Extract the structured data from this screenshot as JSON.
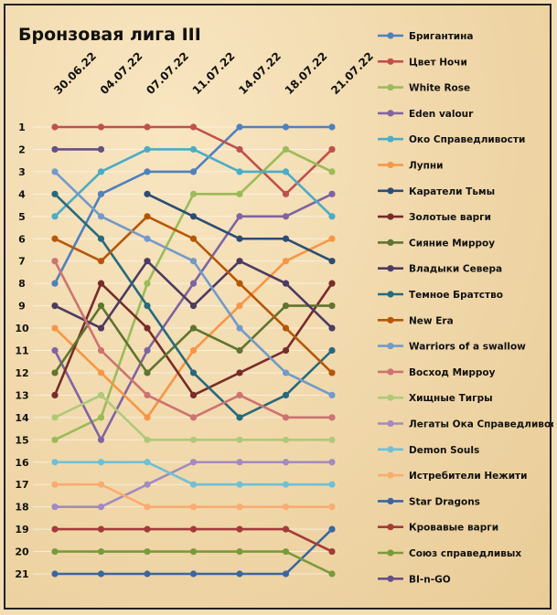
{
  "chart_data": {
    "type": "line",
    "title": "Бронзовая лига III",
    "xlabel": "",
    "ylabel": "",
    "x": [
      "30.06.22",
      "04.07.22",
      "07.07.22",
      "11.07.22",
      "14.07.22",
      "18.07.22",
      "21.07.22"
    ],
    "ylim": [
      1,
      21
    ],
    "y_ticks": [
      "1",
      "2",
      "3",
      "4",
      "5",
      "6",
      "7",
      "8",
      "9",
      "10",
      "11",
      "12",
      "13",
      "14",
      "15",
      "16",
      "17",
      "18",
      "19",
      "20",
      "21"
    ],
    "y_inverted": true,
    "grid": true,
    "legend_position": "right",
    "series": [
      {
        "name": "Бригантина",
        "color": "#4f81bd",
        "values": [
          8,
          4,
          3,
          3,
          1,
          1,
          1
        ]
      },
      {
        "name": "Цвет Ночи",
        "color": "#c0504d",
        "values": [
          1,
          1,
          1,
          1,
          2,
          4,
          2
        ]
      },
      {
        "name": "White Rose",
        "color": "#9bbb59",
        "values": [
          15,
          14,
          8,
          4,
          4,
          2,
          3
        ]
      },
      {
        "name": "Eden valour",
        "color": "#8064a2",
        "values": [
          11,
          15,
          11,
          8,
          5,
          5,
          4
        ]
      },
      {
        "name": "Око Справедливости",
        "color": "#4bacc6",
        "values": [
          5,
          3,
          2,
          2,
          3,
          3,
          5
        ]
      },
      {
        "name": "Лупни",
        "color": "#f79646",
        "values": [
          10,
          12,
          14,
          11,
          9,
          7,
          6
        ]
      },
      {
        "name": "Каратели Тьмы",
        "color": "#2c4d75",
        "values": [
          null,
          null,
          4,
          5,
          6,
          6,
          7
        ]
      },
      {
        "name": "Золотые варги",
        "color": "#772c2a",
        "values": [
          13,
          8,
          10,
          13,
          12,
          11,
          8
        ]
      },
      {
        "name": "Сияние Мирроу",
        "color": "#5f7530",
        "values": [
          12,
          9,
          12,
          10,
          11,
          9,
          9
        ]
      },
      {
        "name": "Владыки Севера",
        "color": "#4d3b62",
        "values": [
          9,
          10,
          7,
          9,
          7,
          8,
          10
        ]
      },
      {
        "name": "Темное Братство",
        "color": "#276a7c",
        "values": [
          4,
          6,
          9,
          12,
          14,
          13,
          11
        ]
      },
      {
        "name": "New Era",
        "color": "#b65708",
        "values": [
          6,
          7,
          5,
          6,
          8,
          10,
          12
        ]
      },
      {
        "name": "Warriors of a swallow",
        "color": "#729aca",
        "values": [
          3,
          5,
          6,
          7,
          10,
          12,
          13
        ]
      },
      {
        "name": "Восход Мирроу",
        "color": "#cd7371",
        "values": [
          7,
          11,
          13,
          14,
          13,
          14,
          14
        ]
      },
      {
        "name": "Хищные Тигры",
        "color": "#afc97a",
        "values": [
          14,
          13,
          15,
          15,
          15,
          15,
          15
        ]
      },
      {
        "name": "Легаты Ока Справедливости",
        "color": "#a18bbf",
        "values": [
          18,
          18,
          17,
          16,
          16,
          16,
          16
        ]
      },
      {
        "name": "Demon Souls",
        "color": "#6fc0d6",
        "values": [
          16,
          16,
          16,
          17,
          17,
          17,
          17
        ]
      },
      {
        "name": "Истребители Нежити",
        "color": "#f9ac70",
        "values": [
          17,
          17,
          18,
          18,
          18,
          18,
          18
        ]
      },
      {
        "name": "Star Dragons",
        "color": "#3a67a0",
        "values": [
          21,
          21,
          21,
          21,
          21,
          21,
          19
        ]
      },
      {
        "name": "Кровавые варги",
        "color": "#a33b38",
        "values": [
          19,
          19,
          19,
          19,
          19,
          19,
          20
        ]
      },
      {
        "name": "Союз справедливых",
        "color": "#7a9a3a",
        "values": [
          20,
          20,
          20,
          20,
          20,
          20,
          21
        ]
      },
      {
        "name": "BI-n-GO",
        "color": "#674f86",
        "values": [
          2,
          2,
          null,
          null,
          null,
          null,
          null
        ]
      }
    ]
  }
}
